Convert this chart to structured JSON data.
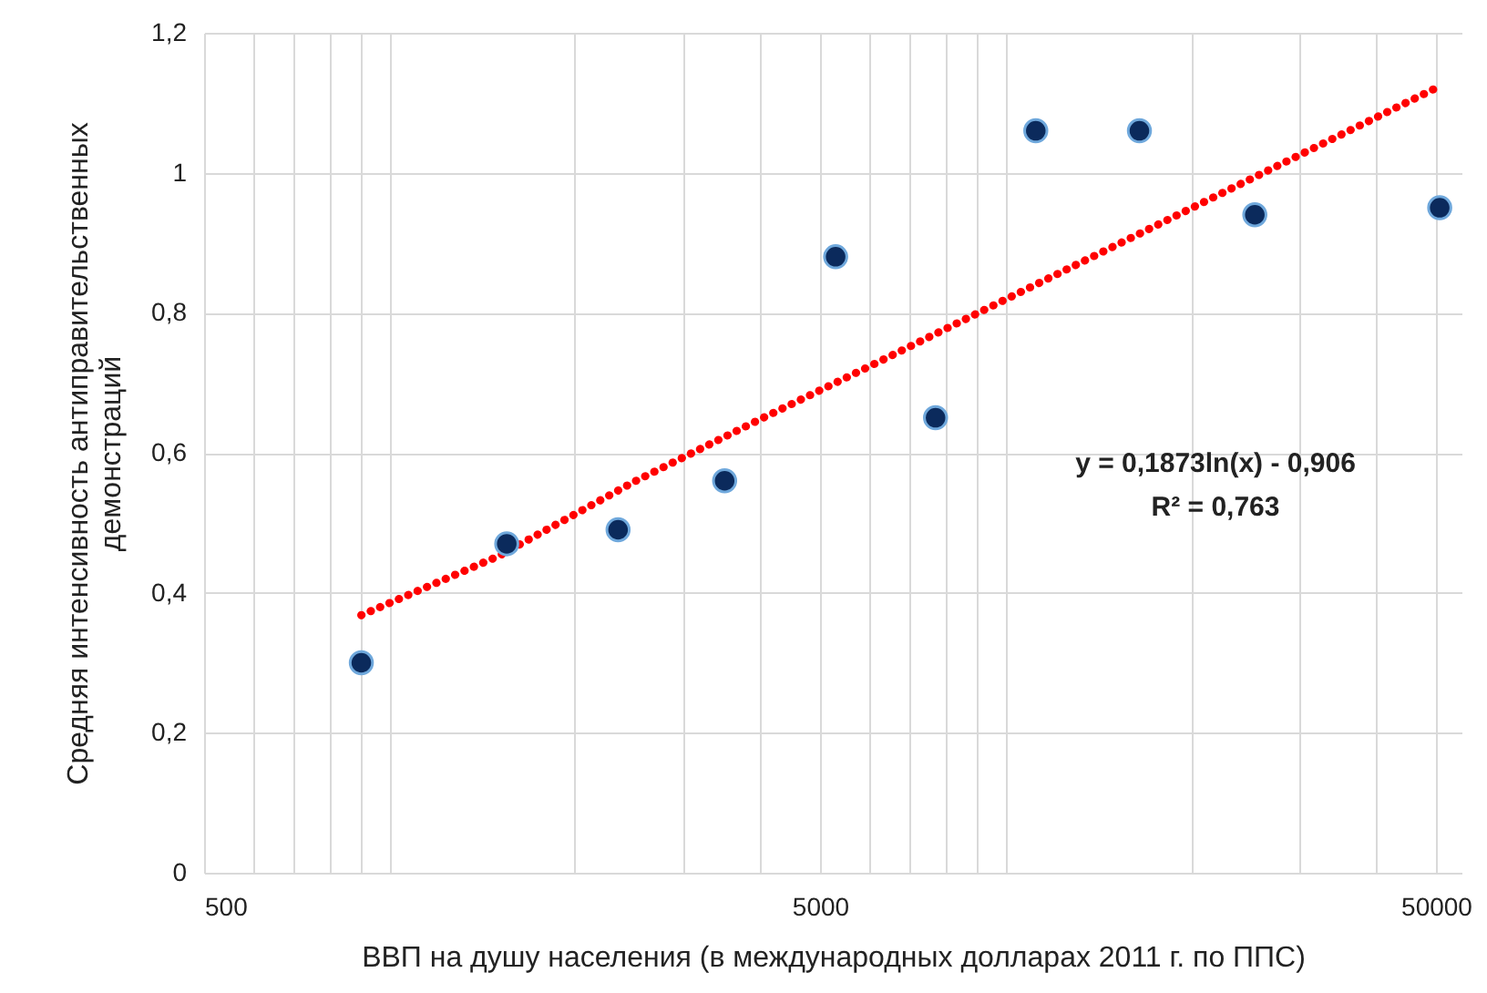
{
  "chart_data": {
    "type": "scatter",
    "xlabel": "ВВП на душу населения (в международных долларах 2011 г. по ППС)",
    "ylabel": "Средняя интенсивность антиправительственных демонстраций",
    "log": "x",
    "grid": true,
    "marker": "circle",
    "xlim": [
      500,
      55000
    ],
    "ylim": [
      0,
      1.2
    ],
    "xticks": [
      500,
      {
        "value": 600,
        "label": null
      },
      {
        "value": 700,
        "label": null
      },
      {
        "value": 800,
        "label": null
      },
      {
        "value": 900,
        "label": null
      },
      {
        "value": 1000,
        "label": null
      },
      {
        "value": 2000,
        "label": null
      },
      {
        "value": 3000,
        "label": null
      },
      {
        "value": 4000,
        "label": null
      },
      5000,
      {
        "value": 6000,
        "label": null
      },
      {
        "value": 7000,
        "label": null
      },
      {
        "value": 8000,
        "label": null
      },
      {
        "value": 9000,
        "label": null
      },
      {
        "value": 10000,
        "label": null
      },
      {
        "value": 20000,
        "label": null
      },
      {
        "value": 30000,
        "label": null
      },
      {
        "value": 40000,
        "label": null
      },
      50000
    ],
    "yticks": [
      0,
      {
        "value": 0.2,
        "label": "0,2"
      },
      {
        "value": 0.4,
        "label": "0,4"
      },
      {
        "value": 0.6,
        "label": "0,6"
      },
      {
        "value": 0.8,
        "label": "0,8"
      },
      1,
      {
        "value": 1.2,
        "label": "1,2"
      }
    ],
    "series": [
      {
        "type": "line",
        "color": "#ff0000",
        "line_style": "dotted",
        "marker": "none",
        "x": [
          900,
          1500,
          2500,
          4000,
          6000,
          10000,
          15000,
          25000,
          50000
        ],
        "values": [
          0.368,
          0.452,
          0.559,
          0.648,
          0.723,
          0.819,
          0.895,
          0.991,
          1.121
        ]
      },
      {
        "color": "#0b2a5c",
        "x": [
          900,
          1550,
          2350,
          3500,
          5300,
          7700,
          11200,
          16500,
          25400,
          50700
        ],
        "values": [
          0.3,
          0.47,
          0.49,
          0.56,
          0.88,
          0.65,
          1.06,
          1.06,
          0.94,
          0.95
        ]
      }
    ],
    "annotations": [
      "y = 0,1873ln(x) - 0,906",
      "R² = 0,763"
    ]
  }
}
